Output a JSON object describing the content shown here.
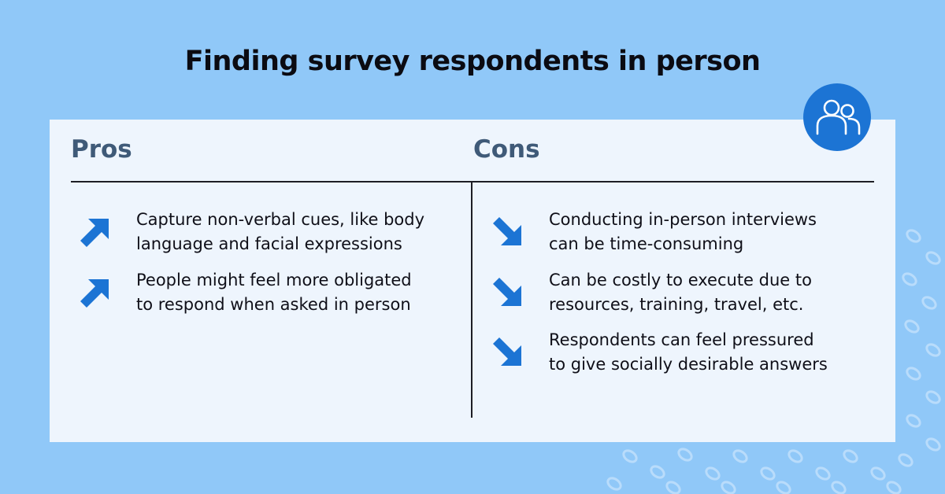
{
  "title": "Finding survey respondents in person",
  "pros": {
    "heading": "Pros",
    "items": [
      {
        "text": "Capture non-verbal cues, like body\nlanguage and facial expressions"
      },
      {
        "text": "People might feel more obligated\nto respond when asked in person"
      }
    ]
  },
  "cons": {
    "heading": "Cons",
    "items": [
      {
        "text": "Conducting in-person interviews\ncan be time-consuming"
      },
      {
        "text": "Can be costly to execute due to\nresources, training, travel, etc."
      },
      {
        "text": "Respondents can feel pressured\nto give socially desirable answers"
      }
    ]
  },
  "icons": {
    "badge": "people-icon",
    "pro": "arrow-up-right-icon",
    "con": "arrow-down-right-icon"
  },
  "colors": {
    "background": "#90c8f8",
    "card": "#eef5fd",
    "accent": "#1c74d4",
    "heading": "#3f5a78"
  }
}
